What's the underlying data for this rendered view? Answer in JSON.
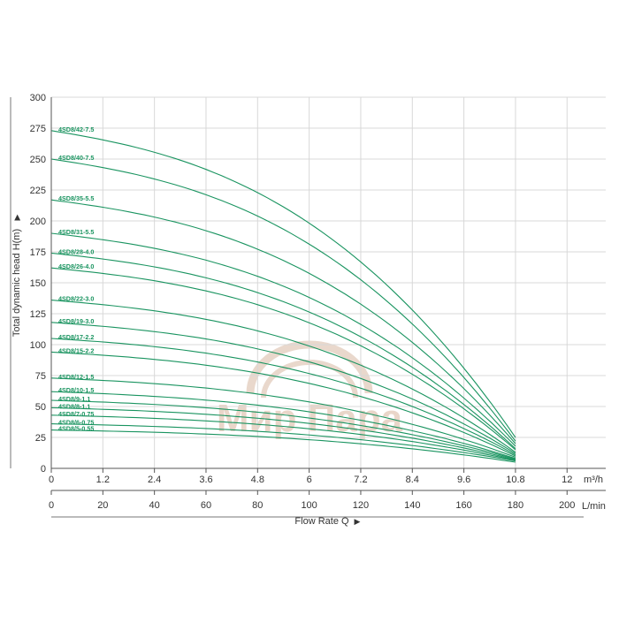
{
  "chart_data": {
    "type": "line",
    "ylabel": "Total dynamic head H(m)",
    "xlabel": "Flow Rate Q",
    "x_unit_primary": "m³/h",
    "x_unit_secondary": "L/min",
    "x_primary_ticks": [
      "0",
      "1.2",
      "2.4",
      "3.6",
      "4.8",
      "6",
      "7.2",
      "8.4",
      "9.6",
      "10.8",
      "12"
    ],
    "x_secondary_ticks": [
      "0",
      "20",
      "40",
      "60",
      "80",
      "100",
      "120",
      "140",
      "160",
      "180",
      "200"
    ],
    "y_ticks": [
      "0",
      "25",
      "50",
      "75",
      "100",
      "125",
      "150",
      "175",
      "200",
      "225",
      "250",
      "275",
      "300"
    ],
    "xlim": [
      0,
      12.9
    ],
    "ylim": [
      0,
      300
    ],
    "grid": true,
    "curve_color": "#1a9460",
    "label_color": "#1a9460",
    "watermark_text": "Мир Пара",
    "series": [
      {
        "name": "4SD8/42-7.5",
        "x": [
          0,
          10.8
        ],
        "y": [
          273,
          25
        ]
      },
      {
        "name": "4SD8/40-7.5",
        "x": [
          0,
          10.8
        ],
        "y": [
          250,
          22
        ]
      },
      {
        "name": "4SD8/35-5.5",
        "x": [
          0,
          10.8
        ],
        "y": [
          217,
          20
        ]
      },
      {
        "name": "4SD8/31-5.5",
        "x": [
          0,
          10.8
        ],
        "y": [
          190,
          18
        ]
      },
      {
        "name": "4SD8/28-4.0",
        "x": [
          0,
          10.8
        ],
        "y": [
          174,
          16
        ]
      },
      {
        "name": "4SD8/26-4.0",
        "x": [
          0,
          10.8
        ],
        "y": [
          162,
          15
        ]
      },
      {
        "name": "4SD8/22-3.0",
        "x": [
          0,
          10.8
        ],
        "y": [
          136,
          13
        ]
      },
      {
        "name": "4SD8/19-3.0",
        "x": [
          0,
          10.8
        ],
        "y": [
          118,
          12
        ]
      },
      {
        "name": "4SD8/17-2.2",
        "x": [
          0,
          10.8
        ],
        "y": [
          105,
          11
        ]
      },
      {
        "name": "4SD8/15-2.2",
        "x": [
          0,
          10.8
        ],
        "y": [
          94,
          10
        ]
      },
      {
        "name": "4SD8/12-1.5",
        "x": [
          0,
          10.8
        ],
        "y": [
          73,
          9
        ]
      },
      {
        "name": "4SD8/10-1.5",
        "x": [
          0,
          10.8
        ],
        "y": [
          62,
          8
        ]
      },
      {
        "name": "4SD8/9-1.1",
        "x": [
          0,
          10.8
        ],
        "y": [
          55,
          7.5
        ]
      },
      {
        "name": "4SD8/8-1.1",
        "x": [
          0,
          10.8
        ],
        "y": [
          49,
          7
        ]
      },
      {
        "name": "4SD8/7-0.75",
        "x": [
          0,
          10.8
        ],
        "y": [
          43,
          6.5
        ]
      },
      {
        "name": "4SD8/6-0.75",
        "x": [
          0,
          10.8
        ],
        "y": [
          36,
          6
        ]
      },
      {
        "name": "4SD8/5-0.55",
        "x": [
          0,
          10.8
        ],
        "y": [
          31,
          5
        ]
      }
    ]
  }
}
